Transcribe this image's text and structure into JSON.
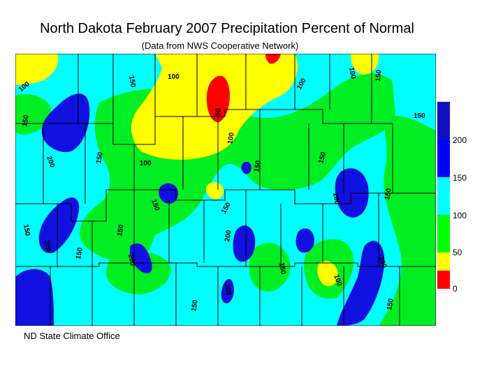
{
  "title": "North Dakota February 2007 Precipitation Percent of Normal",
  "subtitle": "(Data from NWS Cooperative Network)",
  "footer": "ND State Climate Office",
  "legend": [
    {
      "value": "200",
      "color": "#0000ff"
    },
    {
      "value": "150",
      "color": "#00ffff"
    },
    {
      "value": "100",
      "color": "#00ff00"
    },
    {
      "value": "50",
      "color": "#ffff00"
    },
    {
      "value": "0",
      "color": "#ff0000"
    }
  ],
  "legend_top_color": "#1010c0",
  "colors": {
    "blue": "#1010e0",
    "cyan": "#00ffff",
    "green": "#00ee22",
    "yellow": "#ffff00",
    "red": "#ff0000"
  },
  "contour_labels": [
    "100",
    "150",
    "100",
    "100",
    "100",
    "150",
    "150",
    "150",
    "200",
    "150",
    "100",
    "150",
    "150",
    "150",
    "200",
    "200",
    "150",
    "150",
    "150",
    "200",
    "200",
    "150",
    "150",
    "200",
    "150",
    "200",
    "150",
    "100",
    "150",
    "50",
    "100"
  ]
}
